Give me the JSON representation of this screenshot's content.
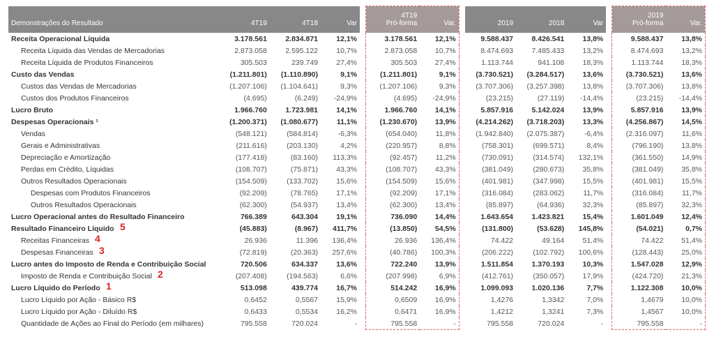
{
  "header": {
    "title": "Demonstrações do Resultado",
    "cols": [
      "4T19",
      "4T18",
      "Var",
      "4T19\nPró-forma",
      "Var.",
      "2019",
      "2018",
      "Var",
      "2019\nPró-forma",
      "Var."
    ]
  },
  "colWidths": {
    "label": 280,
    "c": 68,
    "pct": 52,
    "pf": 72,
    "gap": 8
  },
  "rows": [
    {
      "id": "rol",
      "label": "Receita Operacional Líquida",
      "b": 1,
      "i": 0,
      "v": [
        "3.178.561",
        "2.834.871",
        "12,1%",
        "3.178.561",
        "12,1%",
        "9.588.437",
        "8.426.541",
        "13,8%",
        "9.588.437",
        "13,8%"
      ]
    },
    {
      "id": "rlvm",
      "label": "Receita Líquida das Vendas de Mercadorias",
      "b": 0,
      "i": 1,
      "v": [
        "2.873.058",
        "2.595.122",
        "10,7%",
        "2.873.058",
        "10,7%",
        "8.474.693",
        "7.485.433",
        "13,2%",
        "8.474.693",
        "13,2%"
      ]
    },
    {
      "id": "rlpf",
      "label": "Receita Líquida de Produtos Financeiros",
      "b": 0,
      "i": 1,
      "v": [
        "305.503",
        "239.749",
        "27,4%",
        "305.503",
        "27,4%",
        "1.113.744",
        "941.108",
        "18,3%",
        "1.113.744",
        "18,3%"
      ]
    },
    {
      "id": "cdv",
      "label": "Custo das Vendas",
      "b": 1,
      "i": 0,
      "v": [
        "(1.211.801)",
        "(1.110.890)",
        "9,1%",
        "(1.211.801)",
        "9,1%",
        "(3.730.521)",
        "(3.284.517)",
        "13,6%",
        "(3.730.521)",
        "13,6%"
      ]
    },
    {
      "id": "cvm",
      "label": "Custos das Vendas de Mercadorias",
      "b": 0,
      "i": 1,
      "v": [
        "(1.207.106)",
        "(1.104.641)",
        "9,3%",
        "(1.207.106)",
        "9,3%",
        "(3.707.306)",
        "(3.257.398)",
        "13,8%",
        "(3.707.306)",
        "13,8%"
      ]
    },
    {
      "id": "cpf",
      "label": "Custos dos Produtos Financeiros",
      "b": 0,
      "i": 1,
      "v": [
        "(4.695)",
        "(6.249)",
        "-24,9%",
        "(4.695)",
        "-24,9%",
        "(23.215)",
        "(27.119)",
        "-14,4%",
        "(23.215)",
        "-14,4%"
      ]
    },
    {
      "id": "lb",
      "label": "Lucro Bruto",
      "b": 1,
      "i": 0,
      "v": [
        "1.966.760",
        "1.723.981",
        "14,1%",
        "1.966.760",
        "14,1%",
        "5.857.916",
        "5.142.024",
        "13,9%",
        "5.857.916",
        "13,9%"
      ]
    },
    {
      "id": "do",
      "label": "Despesas Operacionais ¹",
      "b": 1,
      "i": 0,
      "v": [
        "(1.200.371)",
        "(1.080.677)",
        "11,1%",
        "(1.230.670)",
        "13,9%",
        "(4.214.262)",
        "(3.718.203)",
        "13,3%",
        "(4.256.867)",
        "14,5%"
      ]
    },
    {
      "id": "vend",
      "label": "Vendas",
      "b": 0,
      "i": 1,
      "v": [
        "(548.121)",
        "(584.814)",
        "-6,3%",
        "(654.040)",
        "11,8%",
        "(1.942.840)",
        "(2.075.387)",
        "-6,4%",
        "(2.316.097)",
        "11,6%"
      ]
    },
    {
      "id": "ga",
      "label": "Gerais e Administrativas",
      "b": 0,
      "i": 1,
      "v": [
        "(211.616)",
        "(203.130)",
        "4,2%",
        "(220.957)",
        "8,8%",
        "(758.301)",
        "(699.571)",
        "8,4%",
        "(796.190)",
        "13,8%"
      ]
    },
    {
      "id": "da",
      "label": "Depreciação e Amortização",
      "b": 0,
      "i": 1,
      "v": [
        "(177.418)",
        "(83.160)",
        "113,3%",
        "(92.457)",
        "11,2%",
        "(730.091)",
        "(314.574)",
        "132,1%",
        "(361.550)",
        "14,9%"
      ]
    },
    {
      "id": "pcl",
      "label": "Perdas em Crédito, Líquidas",
      "b": 0,
      "i": 1,
      "v": [
        "(108.707)",
        "(75.871)",
        "43,3%",
        "(108.707)",
        "43,3%",
        "(381.049)",
        "(280.673)",
        "35,8%",
        "(381.049)",
        "35,8%"
      ]
    },
    {
      "id": "oro",
      "label": "Outros Resultados Operacionais",
      "b": 0,
      "i": 1,
      "v": [
        "(154.509)",
        "(133.702)",
        "15,6%",
        "(154.509)",
        "15,6%",
        "(401.981)",
        "(347.998)",
        "15,5%",
        "(401.981)",
        "15,5%"
      ]
    },
    {
      "id": "dpf",
      "label": "Despesas com Produtos Financeiros",
      "b": 0,
      "i": 2,
      "v": [
        "(92.209)",
        "(78.765)",
        "17,1%",
        "(92.209)",
        "17,1%",
        "(316.084)",
        "(283.062)",
        "11,7%",
        "(316.084)",
        "11,7%"
      ]
    },
    {
      "id": "oro2",
      "label": "Outros Resultados Operacionais",
      "b": 0,
      "i": 2,
      "v": [
        "(62.300)",
        "(54.937)",
        "13,4%",
        "(62.300)",
        "13,4%",
        "(85.897)",
        "(64.936)",
        "32,3%",
        "(85.897)",
        "32,3%"
      ]
    },
    {
      "id": "loarf",
      "label": "Lucro Operacional antes do Resultado Financeiro",
      "b": 1,
      "i": 0,
      "v": [
        "766.389",
        "643.304",
        "19,1%",
        "736.090",
        "14,4%",
        "1.643.654",
        "1.423.821",
        "15,4%",
        "1.601.049",
        "12,4%"
      ]
    },
    {
      "id": "rfl",
      "label": "Resultado Financeiro Líquido",
      "b": 1,
      "i": 0,
      "annot": "5",
      "v": [
        "(45.883)",
        "(8.967)",
        "411,7%",
        "(13.850)",
        "54,5%",
        "(131.800)",
        "(53.628)",
        "145,8%",
        "(54.021)",
        "0,7%"
      ]
    },
    {
      "id": "rf",
      "label": "Receitas Financeiras",
      "b": 0,
      "i": 1,
      "annot": "4",
      "v": [
        "26.936",
        "11.396",
        "136,4%",
        "26.936",
        "136,4%",
        "74.422",
        "49.164",
        "51,4%",
        "74.422",
        "51,4%"
      ]
    },
    {
      "id": "df",
      "label": "Despesas Financeiras",
      "b": 0,
      "i": 1,
      "annot": "3",
      "v": [
        "(72.819)",
        "(20.363)",
        "257,6%",
        "(40.786)",
        "100,3%",
        "(206.222)",
        "(102.792)",
        "100,6%",
        "(128.443)",
        "25,0%"
      ]
    },
    {
      "id": "lairs",
      "label": "Lucro antes do Imposto de Renda e Contribuição Social",
      "b": 1,
      "i": 0,
      "v": [
        "720.506",
        "634.337",
        "13,6%",
        "722.240",
        "13,9%",
        "1.511.854",
        "1.370.193",
        "10,3%",
        "1.547.028",
        "12,9%"
      ]
    },
    {
      "id": "ircs",
      "label": "Imposto de Renda e Contribuição Social",
      "b": 0,
      "i": 1,
      "annot": "2",
      "v": [
        "(207.408)",
        "(194.563)",
        "6,6%",
        "(207.998)",
        "6,9%",
        "(412.761)",
        "(350.057)",
        "17,9%",
        "(424.720)",
        "21,3%"
      ]
    },
    {
      "id": "llp",
      "label": "Lucro Líquido do Período",
      "b": 1,
      "i": 0,
      "annot": "1",
      "v": [
        "513.098",
        "439.774",
        "16,7%",
        "514.242",
        "16,9%",
        "1.099.093",
        "1.020.136",
        "7,7%",
        "1.122.308",
        "10,0%"
      ]
    },
    {
      "id": "lpab",
      "label": "Lucro Líquido por Ação - Básico R$",
      "b": 0,
      "i": 1,
      "v": [
        "0,6452",
        "0,5567",
        "15,9%",
        "0,6509",
        "16,9%",
        "1,4276",
        "1,3342",
        "7,0%",
        "1,4679",
        "10,0%"
      ]
    },
    {
      "id": "lpad",
      "label": "Lucro Líquido por Ação - Diluído R$",
      "b": 0,
      "i": 1,
      "v": [
        "0,6433",
        "0,5534",
        "16,2%",
        "0,6471",
        "16,9%",
        "1,4212",
        "1,3241",
        "7,3%",
        "1,4567",
        "10,0%"
      ]
    },
    {
      "id": "qafp",
      "label": "Quantidade de Ações ao Final do Período (em milhares)",
      "b": 0,
      "i": 1,
      "last": 1,
      "v": [
        "795.558",
        "720.024",
        "-",
        "795.558",
        "-",
        "795.558",
        "720.024",
        "-",
        "795.558",
        "-"
      ]
    }
  ],
  "colors": {
    "headerBg": "#888888",
    "pfHeaderBg": "#a59a9a",
    "text": "#555555",
    "bold": "#333333",
    "annot": "#d22222",
    "pfBorder": "#d66666"
  }
}
